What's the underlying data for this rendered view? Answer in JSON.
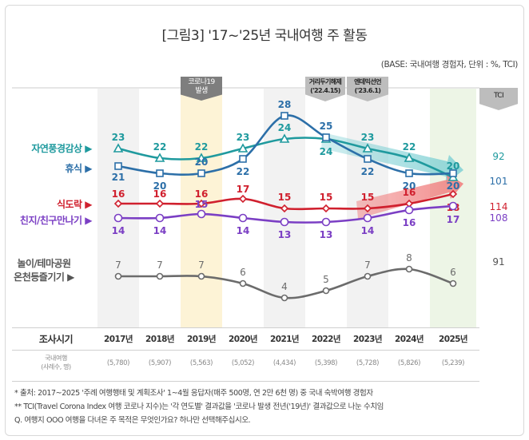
{
  "title": "[그림3] '17~'25년 국내여행 주 활동",
  "base_note": "(BASE: 국내여행 경험자, 단위 : %, TCI)",
  "badges": {
    "covid": {
      "line1": "코로나19",
      "line2": "발생"
    },
    "distancing": {
      "line1": "거리두기해제",
      "line2": "('22.4.15)"
    },
    "endemic": {
      "line1": "엔데믹선언",
      "line2": "('23.6.1)"
    },
    "tci": "TCI"
  },
  "table": {
    "row1_label": "조사시기",
    "row2_label_line1": "국내여행",
    "row2_label_line2": "(사례수, 명)",
    "years": [
      "2017년",
      "2018년",
      "2019년",
      "2020년",
      "2021년",
      "2022년",
      "2023년",
      "2024년",
      "2025년"
    ],
    "samples": [
      "(5,780)",
      "(5,907)",
      "(5,563)",
      "(5,052)",
      "(4,434)",
      "(5,398)",
      "(5,728)",
      "(5,826)",
      "(5,239)"
    ]
  },
  "footnotes": [
    "* 출처: 2017~2025 '주례 여행행태 및 계획조사' 1~4월 응답자(매주 500명, 연 2만 6천 명) 중 국내 숙박여행 경험자",
    "** TCI(Travel Corona Index 여행 코로나 지수)는 '각 연도별' 결과값을 '코로나 발생 전년('19년)' 결과값으로 나눈 수치임",
    "Q. 여행지 OOO 여행을 다녀온 주 목적은 무엇인가요? 하나만 선택해주십시오."
  ],
  "chart_data": {
    "type": "line",
    "title": "[그림3] '17~'25년 국내여행 주 활동",
    "subtitle": "(BASE: 국내여행 경험자, 단위 : %, TCI)",
    "xlabel": "조사시기",
    "ylabel": "%",
    "x": [
      "2017년",
      "2018년",
      "2019년",
      "2020년",
      "2021년",
      "2022년",
      "2023년",
      "2024년",
      "2025년"
    ],
    "grid": false,
    "legend": "left",
    "highlight_columns": {
      "2019년": "#fdf3d6",
      "2025년": "#edf5e6"
    },
    "annotations": [
      "코로나19 발생 (2019년)",
      "거리두기해제 ('22.4.15)",
      "엔데믹선언 ('23.6.1)"
    ],
    "series": [
      {
        "name": "자연풍경감상",
        "color": "#1f9a9e",
        "marker": "triangle",
        "values": [
          23,
          22,
          22,
          23,
          24,
          24,
          23,
          22,
          20
        ],
        "tci": 92
      },
      {
        "name": "휴식",
        "color": "#2c6fa8",
        "marker": "square",
        "values": [
          21,
          20,
          20,
          22,
          28,
          25,
          22,
          20,
          20
        ],
        "tci": 101
      },
      {
        "name": "식도락",
        "color": "#d0202e",
        "marker": "diamond",
        "values": [
          16,
          16,
          16,
          17,
          15,
          15,
          15,
          16,
          18
        ],
        "tci": 114
      },
      {
        "name": "친지/친구만나기",
        "color": "#7b3fc4",
        "marker": "circle",
        "values": [
          14,
          14,
          15,
          14,
          13,
          13,
          14,
          16,
          17
        ],
        "tci": 108
      },
      {
        "name": "놀이/테마공원 온천등즐기기",
        "color": "#6b6b6b",
        "marker": "circle",
        "values": [
          7,
          7,
          7,
          6,
          4,
          5,
          7,
          8,
          6
        ],
        "tci": 91
      }
    ]
  }
}
